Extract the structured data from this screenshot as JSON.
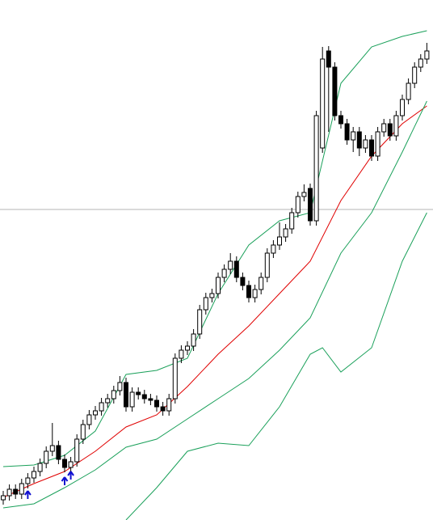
{
  "chart_data": {
    "type": "candlestick",
    "ylim": [
      0,
      643
    ],
    "grid": false,
    "up_color": "#ffffff",
    "down_color": "#000000",
    "wick_color": "#000000",
    "open": [
      25,
      30,
      38,
      32,
      45,
      52,
      60,
      70,
      85,
      92,
      75,
      65,
      72,
      100,
      118,
      130,
      135,
      145,
      150,
      160,
      170,
      140,
      158,
      155,
      150,
      148,
      140,
      135,
      150,
      200,
      210,
      215,
      230,
      260,
      275,
      280,
      300,
      310,
      320,
      300,
      290,
      275,
      285,
      300,
      330,
      340,
      350,
      360,
      380,
      400,
      410,
      370,
      460,
      580,
      560,
      500,
      490,
      470,
      480,
      460,
      470,
      450,
      480,
      490,
      475,
      500,
      520,
      540,
      560,
      570
    ],
    "high": [
      36,
      44,
      44,
      51,
      58,
      66,
      76,
      91,
      120,
      98,
      81,
      78,
      106,
      124,
      136,
      141,
      151,
      156,
      166,
      178,
      176,
      164,
      164,
      161,
      156,
      154,
      146,
      156,
      206,
      216,
      221,
      236,
      266,
      281,
      286,
      306,
      316,
      330,
      326,
      306,
      296,
      291,
      306,
      336,
      346,
      368,
      366,
      386,
      406,
      415,
      416,
      506,
      585,
      586,
      566,
      506,
      496,
      486,
      486,
      476,
      476,
      486,
      496,
      496,
      506,
      526,
      546,
      566,
      576,
      590
    ],
    "low": [
      19,
      24,
      26,
      26,
      39,
      46,
      54,
      64,
      79,
      69,
      59,
      59,
      66,
      94,
      112,
      124,
      129,
      139,
      144,
      154,
      134,
      134,
      149,
      144,
      142,
      134,
      129,
      129,
      144,
      194,
      204,
      209,
      224,
      254,
      269,
      274,
      294,
      304,
      294,
      284,
      269,
      269,
      279,
      294,
      324,
      334,
      344,
      354,
      374,
      394,
      364,
      364,
      454,
      480,
      494,
      484,
      464,
      455,
      450,
      454,
      444,
      444,
      474,
      469,
      469,
      494,
      514,
      534,
      554,
      564
    ],
    "close": [
      30,
      38,
      32,
      45,
      52,
      60,
      70,
      85,
      92,
      75,
      65,
      72,
      100,
      118,
      130,
      135,
      145,
      150,
      160,
      170,
      140,
      158,
      155,
      150,
      148,
      140,
      135,
      150,
      200,
      210,
      215,
      230,
      260,
      275,
      280,
      300,
      310,
      320,
      300,
      290,
      275,
      285,
      300,
      330,
      340,
      350,
      360,
      380,
      400,
      405,
      370,
      500,
      570,
      560,
      500,
      490,
      470,
      480,
      460,
      470,
      450,
      480,
      490,
      475,
      500,
      520,
      540,
      560,
      570,
      580
    ],
    "series": [
      {
        "color": "#1aa05a",
        "x": [
          0,
          5,
          10,
          15,
          20,
          25,
          30,
          35,
          40,
          45,
          50,
          55,
          60,
          65,
          69
        ],
        "values": [
          66,
          68,
          80,
          110,
          180,
          185,
          200,
          280,
          340,
          370,
          380,
          540,
          585,
          598,
          605
        ]
      },
      {
        "color": "#e00000",
        "x": [
          0,
          5,
          10,
          15,
          20,
          25,
          30,
          35,
          40,
          45,
          50,
          55,
          60,
          65,
          69
        ],
        "values": [
          28,
          45,
          60,
          85,
          115,
          130,
          165,
          205,
          240,
          280,
          320,
          395,
          450,
          490,
          512
        ]
      },
      {
        "color": "#1aa05a",
        "x": [
          0,
          5,
          10,
          15,
          20,
          25,
          30,
          35,
          40,
          45,
          50,
          55,
          60,
          65,
          69
        ],
        "values": [
          15,
          20,
          40,
          62,
          90,
          100,
          125,
          150,
          175,
          210,
          250,
          330,
          380,
          455,
          518
        ]
      },
      {
        "color": "#1aa05a",
        "x": [
          20,
          25,
          30,
          35,
          40,
          45,
          50,
          52,
          55,
          60,
          65,
          69
        ],
        "values": [
          0,
          40,
          85,
          95,
          92,
          140,
          205,
          213,
          183,
          213,
          320,
          380
        ]
      }
    ],
    "hline": 384,
    "hline_color": "#b4b4b4",
    "signals": {
      "color": "#1010d0",
      "x": [
        4,
        10,
        11
      ],
      "values": [
        31,
        48,
        55
      ]
    }
  }
}
